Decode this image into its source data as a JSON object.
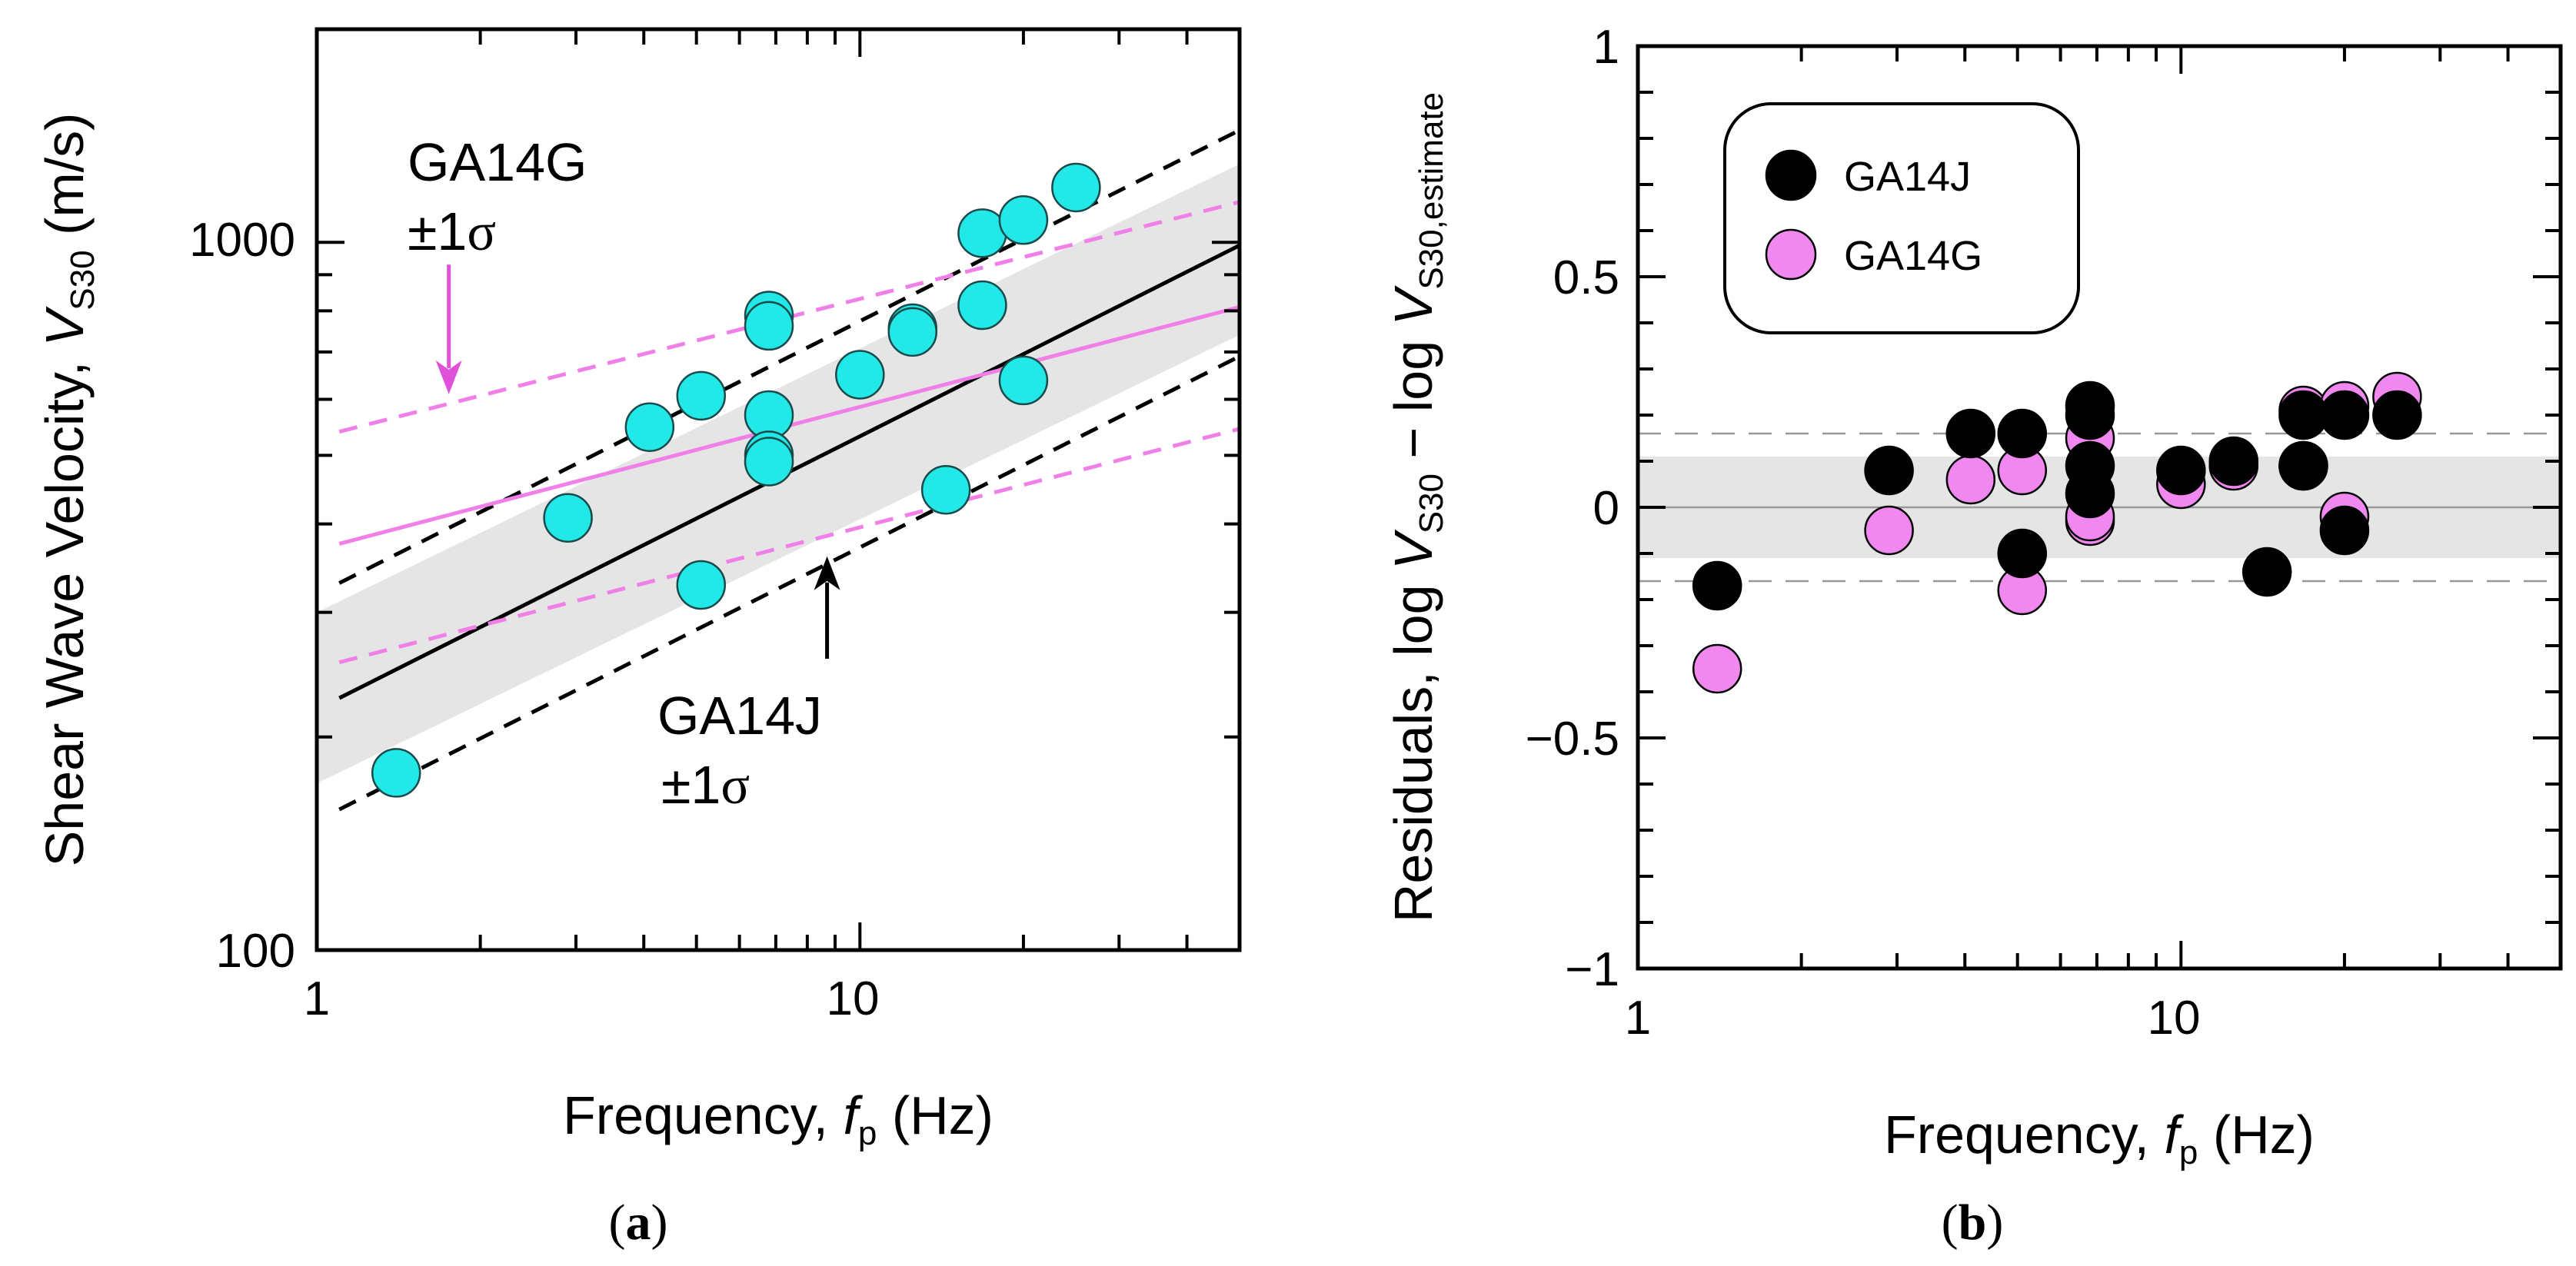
{
  "chart_data": [
    {
      "id": "a",
      "type": "scatter",
      "panel_label": "(a)",
      "panel_letter": "a",
      "xlabel": "Frequency, ",
      "xlabel_var": "f",
      "xlabel_sub": "p",
      "xlabel_unit": " (Hz)",
      "ylabel": "Shear Wave Velocity,  ",
      "ylabel_var": "V",
      "ylabel_sub": "S30",
      "ylabel_unit": " (m/s)",
      "xscale": "log",
      "yscale": "log",
      "xlim": [
        1,
        50
      ],
      "ylim": [
        100,
        2000
      ],
      "xtick_labels": [
        {
          "value": 1,
          "label": "1"
        },
        {
          "value": 10,
          "label": "10"
        }
      ],
      "ytick_labels": [
        {
          "value": 100,
          "label": "100"
        },
        {
          "value": 1000,
          "label": "1000"
        }
      ],
      "points": [
        {
          "x": 1.4,
          "y": 178
        },
        {
          "x": 2.9,
          "y": 408
        },
        {
          "x": 4.1,
          "y": 548
        },
        {
          "x": 5.1,
          "y": 607
        },
        {
          "x": 5.1,
          "y": 328
        },
        {
          "x": 6.8,
          "y": 788
        },
        {
          "x": 6.8,
          "y": 762
        },
        {
          "x": 6.8,
          "y": 570
        },
        {
          "x": 6.8,
          "y": 500
        },
        {
          "x": 6.8,
          "y": 490
        },
        {
          "x": 10.0,
          "y": 650
        },
        {
          "x": 12.5,
          "y": 756
        },
        {
          "x": 12.5,
          "y": 747
        },
        {
          "x": 14.4,
          "y": 447
        },
        {
          "x": 16.8,
          "y": 1030
        },
        {
          "x": 16.8,
          "y": 815
        },
        {
          "x": 20.0,
          "y": 1075
        },
        {
          "x": 20.0,
          "y": 638
        },
        {
          "x": 25.0,
          "y": 1195
        }
      ],
      "lines": [
        {
          "name": "GA14J",
          "style": "solid",
          "color": "#000000",
          "x": [
            1.1,
            50
          ],
          "y": [
            227,
            990
          ]
        },
        {
          "name": "GA14J +1σ",
          "style": "dashed",
          "color": "#000000",
          "x": [
            1.1,
            50
          ],
          "y": [
            330,
            1440
          ]
        },
        {
          "name": "GA14J −1σ",
          "style": "dashed",
          "color": "#000000",
          "x": [
            1.1,
            50
          ],
          "y": [
            158,
            690
          ]
        },
        {
          "name": "GA14G",
          "style": "solid",
          "color": "#f080e8",
          "x": [
            1.1,
            50
          ],
          "y": [
            375,
            810
          ]
        },
        {
          "name": "GA14G +1σ",
          "style": "dashed",
          "color": "#f080e8",
          "x": [
            1.1,
            50
          ],
          "y": [
            540,
            1140
          ]
        },
        {
          "name": "GA14G −1σ",
          "style": "dashed",
          "color": "#f080e8",
          "x": [
            1.1,
            50
          ],
          "y": [
            255,
            545
          ]
        }
      ],
      "band": {
        "x": [
          1.0,
          50
        ],
        "lower": [
          172,
          740
        ],
        "upper": [
          300,
          1290
        ],
        "color": "#e5e5e5"
      },
      "annotations": [
        {
          "line1": "GA14G",
          "line2": "±1",
          "sigma": "σ",
          "arrow_color": "#e050d8",
          "arrow_x": 1.75,
          "arrow_y_from": 930,
          "arrow_y_to": 610
        },
        {
          "line1": "GA14J",
          "line2": "±1",
          "sigma": "σ",
          "arrow_color": "#000000",
          "arrow_x": 8.7,
          "arrow_y_from": 258,
          "arrow_y_to": 360
        }
      ],
      "colors": {
        "marker": "#22e8e8",
        "marker_edge": "#1a4a4a",
        "band": "#e5e5e5"
      }
    },
    {
      "id": "b",
      "type": "scatter",
      "panel_label": "(b)",
      "panel_letter": "b",
      "xlabel": "Frequency, ",
      "xlabel_var": "f",
      "xlabel_sub": "p",
      "xlabel_unit": " (Hz)",
      "ylabel_part1": "Residuals, log ",
      "ylabel_var1": "V",
      "ylabel_sub1": "S30",
      "ylabel_part2": " − log ",
      "ylabel_var2": "V",
      "ylabel_sub2": "S30,estimate",
      "xscale": "log",
      "yscale": "linear",
      "xlim": [
        1,
        50
      ],
      "ylim": [
        -1,
        1
      ],
      "xtick_labels": [
        {
          "value": 1,
          "label": "1"
        },
        {
          "value": 10,
          "label": "10"
        }
      ],
      "ytick_labels": [
        {
          "value": 1,
          "label": "1"
        },
        {
          "value": 0.5,
          "label": "0.5"
        },
        {
          "value": 0,
          "label": "0"
        },
        {
          "value": -0.5,
          "label": "−0.5"
        },
        {
          "value": -1,
          "label": "−1"
        }
      ],
      "reference_lines": [
        {
          "y": 0,
          "style": "solid",
          "color": "#999999"
        },
        {
          "y": 0.16,
          "style": "dashed",
          "color": "#999999"
        },
        {
          "y": -0.16,
          "style": "dashed",
          "color": "#999999"
        }
      ],
      "band": {
        "lower": -0.11,
        "upper": 0.11,
        "color": "#e5e5e5"
      },
      "legend": {
        "position": "top-left",
        "entries": [
          {
            "label": "GA14J",
            "color": "#000000"
          },
          {
            "label": "GA14G",
            "color": "#f088f0"
          }
        ]
      },
      "series": [
        {
          "name": "GA14G",
          "color": "#f088f0",
          "points": [
            {
              "x": 1.4,
              "y": -0.35
            },
            {
              "x": 2.9,
              "y": -0.05
            },
            {
              "x": 4.1,
              "y": 0.06
            },
            {
              "x": 5.1,
              "y": 0.08
            },
            {
              "x": 5.1,
              "y": -0.18
            },
            {
              "x": 6.8,
              "y": 0.15
            },
            {
              "x": 6.8,
              "y": -0.03
            },
            {
              "x": 6.8,
              "y": -0.02
            },
            {
              "x": 10.0,
              "y": 0.05
            },
            {
              "x": 12.5,
              "y": 0.09
            },
            {
              "x": 16.8,
              "y": 0.21
            },
            {
              "x": 16.8,
              "y": 0.09
            },
            {
              "x": 20.0,
              "y": 0.22
            },
            {
              "x": 20.0,
              "y": -0.02
            },
            {
              "x": 25.0,
              "y": 0.24
            }
          ]
        },
        {
          "name": "GA14J",
          "color": "#000000",
          "points": [
            {
              "x": 1.4,
              "y": -0.17
            },
            {
              "x": 2.9,
              "y": 0.08
            },
            {
              "x": 4.1,
              "y": 0.16
            },
            {
              "x": 5.1,
              "y": 0.16
            },
            {
              "x": 5.1,
              "y": -0.1
            },
            {
              "x": 6.8,
              "y": 0.22
            },
            {
              "x": 6.8,
              "y": 0.2
            },
            {
              "x": 6.8,
              "y": 0.09
            },
            {
              "x": 6.8,
              "y": 0.03
            },
            {
              "x": 10.0,
              "y": 0.08
            },
            {
              "x": 12.5,
              "y": 0.1
            },
            {
              "x": 14.4,
              "y": -0.14
            },
            {
              "x": 16.8,
              "y": 0.2
            },
            {
              "x": 16.8,
              "y": 0.09
            },
            {
              "x": 20.0,
              "y": 0.2
            },
            {
              "x": 20.0,
              "y": -0.05
            },
            {
              "x": 25.0,
              "y": 0.2
            }
          ]
        }
      ]
    }
  ]
}
